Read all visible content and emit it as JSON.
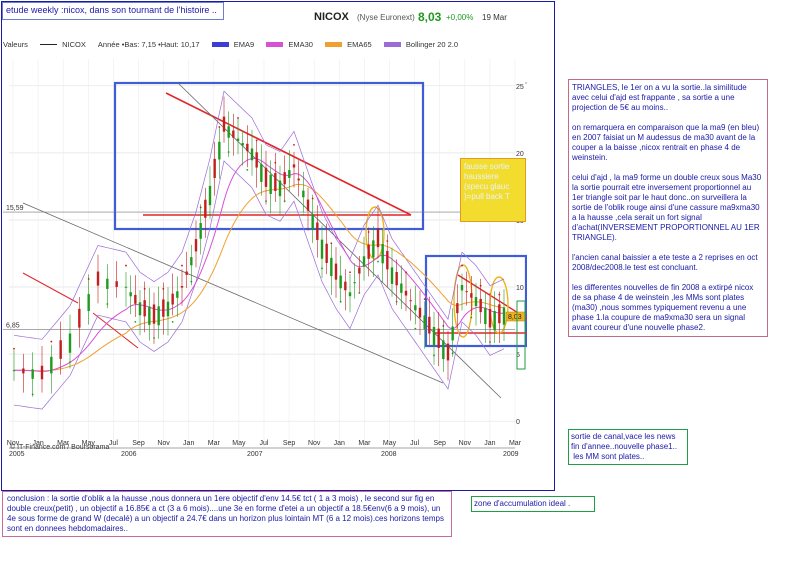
{
  "title_box": "etude weekly :nicox, dans son tournant de l'histoire ..",
  "header": {
    "name": "NICOX",
    "exchange": "(Nyse Euronext)",
    "price": "8,03",
    "change": "+0,00%",
    "date": "19 Mar"
  },
  "legend": {
    "valeur_label": "Valeurs",
    "valeur_name": "NICOX",
    "stats": "Année •Bas: 7,15 •Haut: 10,17",
    "items": [
      {
        "label": "EMA9",
        "color": "#3d3dd6"
      },
      {
        "label": "EMA30",
        "color": "#d651d6"
      },
      {
        "label": "EMA65",
        "color": "#f0a030"
      },
      {
        "label": "Bollinger 20 2.0",
        "color": "#9b6bd6"
      }
    ]
  },
  "copyright": "© IT-Finance.com / Boursorama",
  "level_labels": {
    "upper": "15,59",
    "lower": "6,85",
    "price_tag": "8,03"
  },
  "chart_data": {
    "type": "candlestick",
    "title": "NICOX",
    "y_ticks": [
      0,
      5,
      10,
      15,
      20,
      25
    ],
    "ylim": [
      -2,
      27
    ],
    "x_tick_labels": [
      "Nov",
      "Jan",
      "Mar",
      "May",
      "Jul",
      "Sep",
      "Nov",
      "Jan",
      "Mar",
      "May",
      "Jul",
      "Sep",
      "Nov",
      "Jan",
      "Mar",
      "May",
      "Jul",
      "Sep",
      "Nov",
      "Jan",
      "Mar"
    ],
    "x_year_labels": [
      "2005",
      "2006",
      "2007",
      "2008",
      "2009"
    ],
    "approx_close_path": [
      {
        "t": 0,
        "v": 3.8
      },
      {
        "t": 2,
        "v": 3.5
      },
      {
        "t": 4,
        "v": 6
      },
      {
        "t": 6,
        "v": 10.5
      },
      {
        "t": 8,
        "v": 10
      },
      {
        "t": 9,
        "v": 8.5
      },
      {
        "t": 10,
        "v": 7.8
      },
      {
        "t": 11,
        "v": 8.5
      },
      {
        "t": 12,
        "v": 10
      },
      {
        "t": 13,
        "v": 13
      },
      {
        "t": 14,
        "v": 17
      },
      {
        "t": 15,
        "v": 22
      },
      {
        "t": 16,
        "v": 21
      },
      {
        "t": 17,
        "v": 20
      },
      {
        "t": 18,
        "v": 18
      },
      {
        "t": 19,
        "v": 17.5
      },
      {
        "t": 20,
        "v": 19
      },
      {
        "t": 21,
        "v": 16
      },
      {
        "t": 22,
        "v": 13
      },
      {
        "t": 23,
        "v": 11
      },
      {
        "t": 24,
        "v": 9.5
      },
      {
        "t": 25,
        "v": 12
      },
      {
        "t": 26,
        "v": 13.5
      },
      {
        "t": 27,
        "v": 11
      },
      {
        "t": 28,
        "v": 9.5
      },
      {
        "t": 29,
        "v": 8
      },
      {
        "t": 30,
        "v": 6.5
      },
      {
        "t": 31,
        "v": 5
      },
      {
        "t": 32,
        "v": 10
      },
      {
        "t": 33,
        "v": 9
      },
      {
        "t": 34,
        "v": 7.5
      },
      {
        "t": 35,
        "v": 8
      }
    ]
  },
  "annotations": {
    "right_note": [
      "TRIANGLES, le 1er on a vu la sortie..la similitude avec celui d'ajd est frappante , sa sortie a une projection de 5€ au moins..",
      "on remarquera en comparaison que la ma9 (en bleu) en 2007 faisiat un M audessus de ma30 avant de la couper a la baisse ,nicox rentrait en phase 4 de weinstein.",
      "celui d'ajd , la ma9 forme un double creux sous Ma30 la sortie pourrait etre inversement proportionnel au 1er triangle soit par le haut donc..on surveillera la sortie de l'oblik rouge ainsi d'une cassure ma9xma30 a la hausse ,cela serait un fort signal d'achat(INVERSEMENT PROPORTIONNEL AU 1ER TRIANGLE).",
      "l'ancien canal baissier a ete teste a 2 reprises en oct 2008/dec2008.le test est concluant.",
      "les differentes nouvelles de fin 2008 a extirpé nicox de sa phase 4 de weinstein ,les MMs sont plates (ma30) ,nous sommes typiquement revenu a une phase 1.la coupure de ma9xma30 sera un signal avant coureur d'une nouvelle phase2."
    ],
    "fausse_sortie": "fausse sortie haussiere (specu glauc )=pull back T",
    "canal": "sortie de canal,vace les news fin d'annee..nouvelle phase1..\n les MM sont plates..",
    "conclusion": "conclusion : la sortie d'oblik a la hausse ,nous donnera un 1ere objectif d'env 14.5€ tct ( 1 a 3 mois) , le second sur fig en double creux(petit) , un objectif a 16.85€ a ct (3 a 6 mois)....une 3e en forme d'etei a un objectif a 18.5€env(6 a 9 mois), un 4e sous forme de grand W (decalé) a un objectif a 24.7€ dans un horizon plus lointain MT (6 a 12 mois).ces horizons temps sont en donnees hebdomadaires..",
    "accumulation": "zone d'accumulation ideal ."
  }
}
